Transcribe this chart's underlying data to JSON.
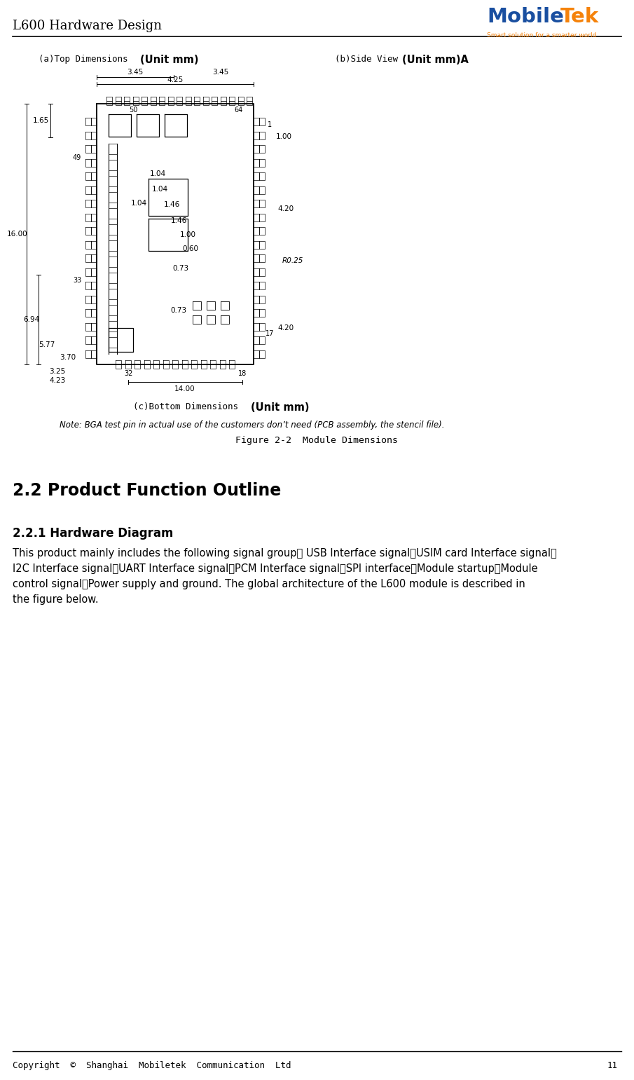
{
  "page_title": "L600 Hardware Design",
  "logo_text_mobile": "Mobile",
  "logo_text_tek": "Tek",
  "logo_sub": "Smart solution for a smarter world",
  "footer_text": "Copyright  ©  Shanghai  Mobiletek  Communication  Ltd",
  "footer_page": "11",
  "caption_a_mono": "(a)Top Dimensions ",
  "caption_a_bold": "(Unit mm)",
  "caption_b_mono": "(b)Side View ",
  "caption_b_bold": "(Unit mm)A",
  "caption_c_mono": "(c)Bottom Dimensions ",
  "caption_c_bold": "(Unit mm)",
  "note_text": "Note: BGA test pin in actual use of the customers don’t need (PCB assembly, the stencil file).",
  "figure_caption": "Figure 2-2  Module Dimensions",
  "section_title": "2.2 Product Function Outline",
  "subsection_title": "2.2.1 Hardware Diagram",
  "body_lines": [
    "This product mainly includes the following signal group： USB Interface signal、USIM card Interface signal、",
    "I2C Interface signal、UART Interface signal、PCM Interface signal、SPI interface、Module startup、Module",
    "control signal、Power supply and ground. The global architecture of the L600 module is described in",
    "the figure below."
  ],
  "bg_color": "#ffffff",
  "text_color": "#000000",
  "logo_blue": "#1a4fa0",
  "logo_orange": "#f5820a"
}
